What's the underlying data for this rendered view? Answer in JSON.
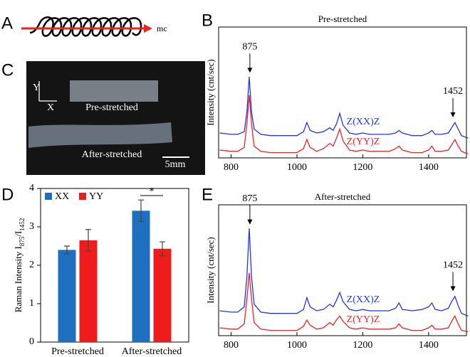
{
  "panel_labels": [
    "A",
    "B",
    "C",
    "D",
    "E"
  ],
  "schematic": {
    "label": "mc"
  },
  "photo": {
    "axis_y": "Y",
    "axis_x": "X",
    "top_label": "Pre-stretched",
    "bottom_label": "After-stretched",
    "scale_bar": "5mm"
  },
  "chart_data": [
    {
      "type": "line",
      "title": "Pre-stretched",
      "ylabel": "Intensity (cnt/sec)",
      "xlim": [
        762,
        1515
      ],
      "xticks": [
        800,
        1000,
        1200,
        1400
      ],
      "ylim": [
        0,
        100
      ],
      "x": [
        765,
        800,
        820,
        840,
        848,
        855,
        862,
        870,
        890,
        920,
        960,
        1000,
        1020,
        1030,
        1040,
        1060,
        1080,
        1100,
        1110,
        1120,
        1130,
        1140,
        1160,
        1180,
        1200,
        1220,
        1250,
        1280,
        1300,
        1310,
        1320,
        1350,
        1380,
        1400,
        1410,
        1420,
        1440,
        1460,
        1470,
        1480,
        1490,
        1500,
        1520
      ],
      "series": [
        {
          "name": "Z(XX)Z",
          "color": "#2233ee",
          "values": [
            19,
            18,
            18,
            20,
            35,
            62,
            35,
            22,
            18,
            17,
            17,
            17,
            20,
            27,
            21,
            19,
            20,
            23,
            21,
            26,
            34,
            25,
            19,
            18,
            19,
            18,
            18,
            18,
            19,
            21,
            19,
            17,
            17,
            19,
            21,
            18,
            18,
            19,
            23,
            27,
            22,
            17,
            15
          ]
        },
        {
          "name": "Z(YY)Z",
          "color": "#ee2222",
          "values": [
            6,
            5,
            5,
            8,
            26,
            48,
            26,
            9,
            5,
            4,
            4,
            4,
            7,
            14,
            8,
            5,
            7,
            11,
            9,
            15,
            22,
            13,
            6,
            5,
            6,
            5,
            5,
            5,
            7,
            9,
            6,
            4,
            4,
            6,
            9,
            5,
            5,
            6,
            10,
            14,
            9,
            5,
            3
          ]
        }
      ],
      "annotations": [
        {
          "text": "875",
          "x": 857,
          "y": 65
        },
        {
          "text": "1452",
          "x": 1474,
          "y": 31
        }
      ]
    },
    {
      "type": "bar",
      "ylabel": [
        "Raman Intensity I",
        "875",
        "/I",
        "1452"
      ],
      "categories": [
        "Pre-stretched",
        "After-stretched"
      ],
      "ylim": [
        0,
        4
      ],
      "yticks": [
        0,
        1,
        2,
        3,
        4
      ],
      "series": [
        {
          "name": "XX",
          "color": "#1f6fc0",
          "values": [
            2.4,
            3.42
          ],
          "errors": [
            0.1,
            0.28
          ]
        },
        {
          "name": "YY",
          "color": "#ee1c1c",
          "values": [
            2.65,
            2.43
          ],
          "errors": [
            0.28,
            0.18
          ]
        }
      ],
      "significance": "*",
      "legend": "upper left"
    },
    {
      "type": "line",
      "title": "After-stretched",
      "ylabel": "Intensity (cnt/sec)",
      "xlim": [
        762,
        1515
      ],
      "xticks": [
        800,
        1000,
        1200,
        1400
      ],
      "ylim": [
        0,
        100
      ],
      "x": [
        765,
        800,
        820,
        840,
        848,
        855,
        862,
        870,
        890,
        920,
        960,
        1000,
        1020,
        1030,
        1040,
        1060,
        1080,
        1100,
        1110,
        1120,
        1130,
        1140,
        1160,
        1180,
        1200,
        1220,
        1250,
        1280,
        1300,
        1310,
        1320,
        1350,
        1380,
        1400,
        1410,
        1420,
        1440,
        1460,
        1470,
        1480,
        1490,
        1500,
        1520
      ],
      "series": [
        {
          "name": "Z(XX)Z",
          "color": "#2233ee",
          "values": [
            19,
            18,
            18,
            22,
            45,
            82,
            45,
            24,
            18,
            17,
            17,
            17,
            20,
            29,
            22,
            19,
            20,
            24,
            22,
            27,
            33,
            26,
            20,
            19,
            20,
            19,
            19,
            19,
            21,
            25,
            20,
            19,
            20,
            22,
            25,
            20,
            19,
            21,
            26,
            30,
            23,
            17,
            15
          ]
        },
        {
          "name": "Z(YY)Z",
          "color": "#ee2222",
          "values": [
            6,
            5,
            5,
            9,
            28,
            48,
            28,
            10,
            5,
            4,
            4,
            4,
            7,
            12,
            8,
            5,
            6,
            10,
            8,
            12,
            15,
            11,
            6,
            5,
            6,
            5,
            5,
            5,
            6,
            9,
            6,
            4,
            4,
            6,
            8,
            5,
            5,
            6,
            11,
            15,
            9,
            4,
            3
          ]
        }
      ],
      "annotations": [
        {
          "text": "875",
          "x": 857,
          "y": 85
        },
        {
          "text": "1452",
          "x": 1474,
          "y": 34
        }
      ]
    }
  ]
}
